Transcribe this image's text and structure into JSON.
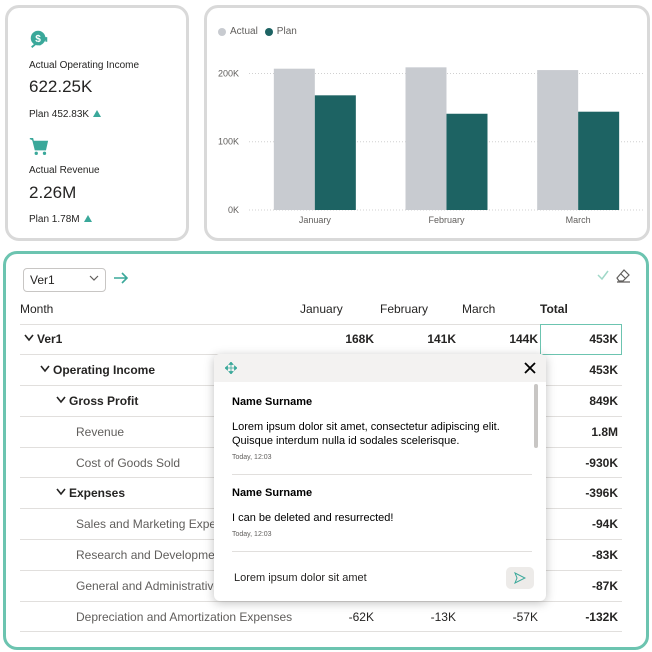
{
  "kpis": [
    {
      "icon": "money-growth-icon",
      "label": "Actual Operating Income",
      "value": "622.25K",
      "plan": "Plan 452.83K"
    },
    {
      "icon": "shopping-cart-icon",
      "label": "Actual Revenue",
      "value": "2.26M",
      "plan": "Plan 1.78M"
    }
  ],
  "chart": {
    "legend": [
      {
        "name": "Actual",
        "color": "#c8cbd0"
      },
      {
        "name": "Plan",
        "color": "#1d6363"
      }
    ]
  },
  "chart_data": {
    "type": "bar",
    "categories": [
      "January",
      "February",
      "March"
    ],
    "series": [
      {
        "name": "Actual",
        "values": [
          207,
          209,
          205
        ]
      },
      {
        "name": "Plan",
        "values": [
          168,
          141,
          144
        ]
      }
    ],
    "y_ticks": [
      "0K",
      "100K",
      "200K"
    ],
    "ylim": [
      0,
      230
    ],
    "grid": true,
    "legend_position": "top-left",
    "colors": {
      "Actual": "#c8cbd0",
      "Plan": "#1d6363"
    }
  },
  "matrix": {
    "version_select": "Ver1",
    "columns": [
      "Month",
      "January",
      "February",
      "March",
      "Total"
    ],
    "rows": [
      {
        "label": "Ver1",
        "level": 0,
        "expand": true,
        "bold": true,
        "jan": "168K",
        "feb": "141K",
        "mar": "144K",
        "total": "453K"
      },
      {
        "label": "Operating Income",
        "level": 1,
        "expand": true,
        "bold": true,
        "jan": "",
        "feb": "",
        "mar": "",
        "total": "453K"
      },
      {
        "label": "Gross Profit",
        "level": 2,
        "expand": true,
        "bold": true,
        "jan": "",
        "feb": "",
        "mar": "",
        "total": "849K"
      },
      {
        "label": "Revenue",
        "level": 3,
        "expand": false,
        "bold": false,
        "jan": "",
        "feb": "",
        "mar": "",
        "total": "1.8M"
      },
      {
        "label": "Cost of Goods Sold",
        "level": 3,
        "expand": false,
        "bold": false,
        "jan": "",
        "feb": "",
        "mar": "",
        "total": "-930K"
      },
      {
        "label": "Expenses",
        "level": 2,
        "expand": true,
        "bold": true,
        "jan": "",
        "feb": "",
        "mar": "",
        "total": "-396K"
      },
      {
        "label": "Sales and Marketing Expenses",
        "level": 3,
        "expand": false,
        "bold": false,
        "jan": "",
        "feb": "",
        "mar": "",
        "total": "-94K"
      },
      {
        "label": "Research and Development",
        "level": 3,
        "expand": false,
        "bold": false,
        "jan": "",
        "feb": "",
        "mar": "",
        "total": "-83K"
      },
      {
        "label": "General and Administrative",
        "level": 3,
        "expand": false,
        "bold": false,
        "jan": "",
        "feb": "",
        "mar": "",
        "total": "-87K"
      },
      {
        "label": "Depreciation and Amortization Expenses",
        "level": 3,
        "expand": false,
        "bold": false,
        "jan": "-62K",
        "feb": "-13K",
        "mar": "-57K",
        "total": "-132K"
      }
    ]
  },
  "comments": {
    "items": [
      {
        "author": "Name Surname",
        "text": "Lorem ipsum dolor sit amet, consectetur adipiscing elit. Quisque interdum nulla id sodales scelerisque.",
        "time": "Today, 12:03"
      },
      {
        "author": "Name Surname",
        "text": "I can be deleted and resurrected!",
        "time": "Today, 12:03"
      }
    ],
    "input_value": "Lorem ipsum dolor sit amet"
  },
  "colors": {
    "accent": "#6cc4b0",
    "plan": "#1d6363",
    "actual": "#c8cbd0",
    "positive": "#3aa89a"
  }
}
